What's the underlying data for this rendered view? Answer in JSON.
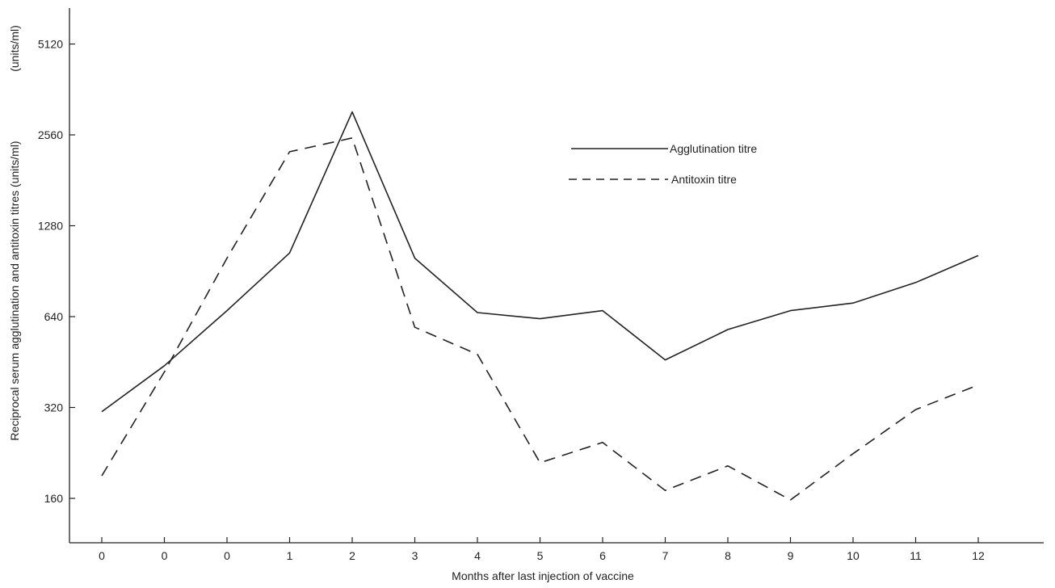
{
  "chart_data": {
    "type": "line",
    "title": "",
    "xlabel": "Months after last injection of vaccine",
    "ylabel": "Reciprocal serum agglutination and antitoxin titres (units/ml)",
    "ylabel_secondary": "(units/ml)",
    "yscale": "log2",
    "ylim": [
      118,
      6800
    ],
    "y_ticks": [
      160,
      320,
      640,
      1280,
      2560,
      5120
    ],
    "y_tick_labels": [
      "160",
      "320",
      "640",
      "1280",
      "2560",
      "5120"
    ],
    "x_tick_labels": [
      "0",
      "0",
      "0",
      "1",
      "2",
      "3",
      "4",
      "5",
      "6",
      "7",
      "8",
      "9",
      "10",
      "11",
      "12"
    ],
    "grid": false,
    "legend_position": "top-right",
    "series": [
      {
        "name": "Agglutination titre",
        "style": "solid",
        "values": [
          310,
          440,
          670,
          1040,
          3050,
          1000,
          660,
          630,
          670,
          460,
          580,
          670,
          710,
          830,
          1020
        ]
      },
      {
        "name": "Antitoxin titre",
        "style": "dashed",
        "values": [
          190,
          420,
          1000,
          2250,
          2500,
          590,
          480,
          210,
          245,
          170,
          205,
          158,
          225,
          315,
          380
        ]
      }
    ]
  }
}
